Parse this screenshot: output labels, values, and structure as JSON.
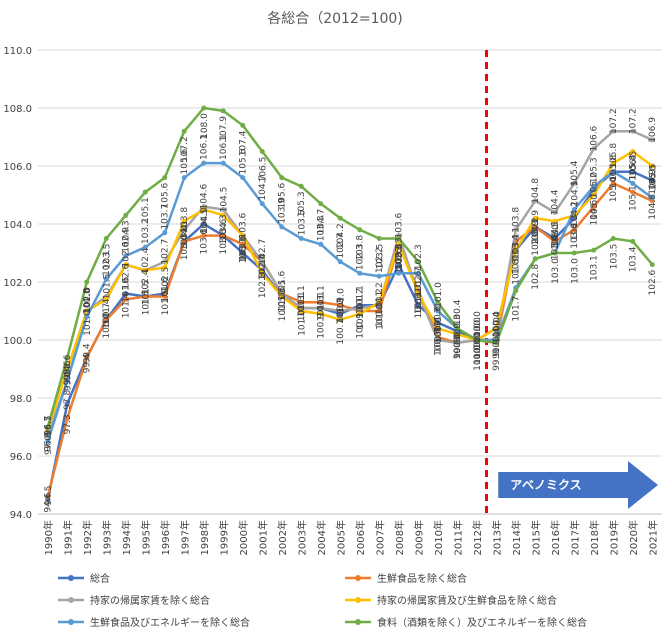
{
  "chart_data": {
    "type": "line",
    "title": "各総合（2012=100)",
    "xlabel": "",
    "ylabel": "",
    "ylim": [
      94.0,
      110.0
    ],
    "yticks": [
      "94.0",
      "96.0",
      "98.0",
      "100.0",
      "102.0",
      "104.0",
      "106.0",
      "108.0",
      "110.0"
    ],
    "categories": [
      "1990年",
      "1991年",
      "1992年",
      "1993年",
      "1994年",
      "1995年",
      "1996年",
      "1997年",
      "1998年",
      "1999年",
      "2000年",
      "2001年",
      "2002年",
      "2003年",
      "2004年",
      "2005年",
      "2006年",
      "2007年",
      "2008年",
      "2009年",
      "2010年",
      "2011年",
      "2012年",
      "2013年",
      "2014年",
      "2015年",
      "2016年",
      "2017年",
      "2018年",
      "2019年",
      "2020年",
      "2021年"
    ],
    "series": [
      {
        "name": "総合",
        "color": "#4472c4",
        "values": [
          94.5,
          97.8,
          99.4,
          100.7,
          101.6,
          101.5,
          101.6,
          103.4,
          104.0,
          103.6,
          103.0,
          102.4,
          101.5,
          101.1,
          101.1,
          100.9,
          101.2,
          101.2,
          102.6,
          101.2,
          100.6,
          100.3,
          100.0,
          100.4,
          103.1,
          103.9,
          103.5,
          104.2,
          105.2,
          105.8,
          105.8,
          105.5
        ]
      },
      {
        "name": "生鮮食品を除く総合",
        "color": "#ed7d31",
        "values": [
          94.6,
          97.3,
          99.4,
          100.7,
          101.4,
          101.5,
          101.5,
          103.4,
          103.6,
          103.6,
          103.3,
          102.7,
          101.6,
          101.3,
          101.3,
          101.2,
          101.0,
          101.0,
          103.3,
          101.7,
          100.1,
          99.9,
          100.0,
          99.9,
          103.4,
          103.9,
          103.4,
          103.8,
          104.6,
          105.4,
          105.1,
          104.8
        ]
      },
      {
        "name": "持家の帰属家賃を除く総合",
        "color": "#a5a5a5",
        "values": [
          96.7,
          98.6,
          101.0,
          101.5,
          102.6,
          102.4,
          102.7,
          103.8,
          104.6,
          104.5,
          103.6,
          102.7,
          101.6,
          101.1,
          101.1,
          101.0,
          101.1,
          101.2,
          103.6,
          101.6,
          100.0,
          99.9,
          100.0,
          100.0,
          103.8,
          104.8,
          104.4,
          105.4,
          106.6,
          107.2,
          107.2,
          106.9
        ]
      },
      {
        "name": "持家の帰属家賃及び生鮮食品を除く総合",
        "color": "#ffc000",
        "values": [
          96.9,
          99.0,
          101.0,
          101.4,
          102.6,
          102.4,
          102.5,
          104.1,
          104.5,
          104.3,
          103.6,
          102.3,
          101.5,
          101.0,
          100.9,
          100.7,
          100.9,
          101.3,
          103.3,
          101.6,
          100.4,
          100.2,
          100.0,
          100.4,
          103.1,
          104.2,
          104.1,
          104.3,
          105.0,
          106.1,
          106.5,
          106.0
        ]
      },
      {
        "name": "生鮮食品及びエネルギーを除く総合",
        "color": "#5b9bd5",
        "values": [
          96.5,
          98.6,
          100.8,
          102.1,
          102.9,
          103.2,
          103.7,
          105.6,
          106.1,
          106.1,
          105.6,
          104.7,
          103.9,
          103.5,
          103.3,
          102.7,
          102.3,
          102.2,
          102.3,
          102.3,
          101.0,
          100.4,
          100.0,
          100.0,
          101.8,
          102.8,
          103.0,
          104.5,
          105.3,
          105.8,
          105.4,
          104.9
        ]
      },
      {
        "name": "食料（酒類を除く）及びエネルギーを除く総合",
        "color": "#70ad47",
        "values": [
          97.0,
          99.4,
          102.0,
          103.5,
          104.3,
          105.1,
          105.6,
          107.2,
          108.0,
          107.9,
          107.4,
          106.5,
          105.6,
          105.3,
          104.7,
          104.2,
          103.8,
          103.5,
          103.5,
          102.7,
          101.3,
          100.4,
          100.0,
          99.9,
          101.7,
          102.8,
          103.0,
          103.0,
          103.1,
          103.5,
          103.4,
          102.6
        ]
      }
    ],
    "annotation": {
      "text": "アベノミクス",
      "divider_between": [
        "2012年",
        "2013年"
      ],
      "color": "#ff0000"
    },
    "arrow_color": "#4472c4",
    "legend_position": "bottom",
    "grid": "horizontal"
  }
}
